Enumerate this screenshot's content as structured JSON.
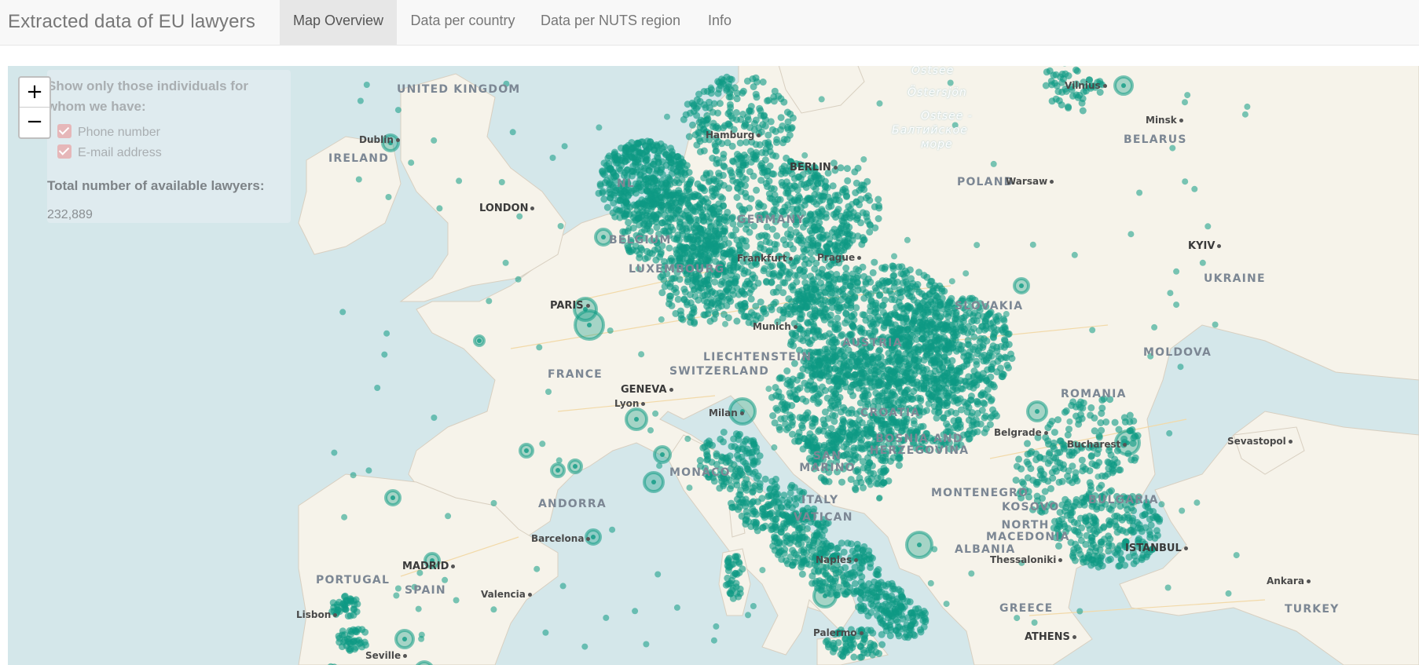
{
  "header": {
    "title": "Extracted data of EU lawyers",
    "tabs": [
      {
        "label": "Map Overview",
        "active": true
      },
      {
        "label": "Data per country",
        "active": false
      },
      {
        "label": "Data per NUTS region",
        "active": false
      },
      {
        "label": "Info",
        "active": false
      }
    ]
  },
  "map": {
    "zoom_in": "+",
    "zoom_out": "−",
    "marker_color": "#0e9a83",
    "filter": {
      "title": "Show only those individuals for whom we have:",
      "options": [
        {
          "label": "Phone number",
          "checked": true
        },
        {
          "label": "E-mail address",
          "checked": true
        }
      ],
      "total_label": "Total number of available lawyers:",
      "total_value": "232,889"
    },
    "labels": {
      "countries": [
        "UNITED KINGDOM",
        "IRELAND",
        "BELGIUM",
        "LUXEMBOURG",
        "FRANCE",
        "SWITZERLAND",
        "LIECHTENSTEIN",
        "ANDORRA",
        "SPAIN",
        "PORTUGAL",
        "ITALY",
        "GERMANY",
        "AUSTRIA",
        "POLAND",
        "BELARUS",
        "UKRAINE",
        "MOLDOVA",
        "ROMANIA",
        "BULGARIA",
        "BOSNIA AND HERZEGOVINA",
        "MONTENEGRO",
        "KOSOVO",
        "NORTH MACEDONIA",
        "ALBANIA",
        "GREECE",
        "TURKEY",
        "CROATIA",
        "MONACO",
        "VATICAN",
        "SAN MARINO",
        "SLOVAKIA",
        "NL"
      ],
      "cities": [
        "Dublin",
        "LONDON",
        "PARIS",
        "GENEVA",
        "Lyon",
        "Milan",
        "Munich",
        "Prague",
        "Frankfurt",
        "Hamburg",
        "BERLIN",
        "Warsaw",
        "Vilnius",
        "Minsk",
        "KYIV",
        "Sevastopol",
        "Bucharest",
        "Belgrade",
        "ISTANBUL",
        "Ankara",
        "Thessaloniki",
        "ATHENS",
        "Naples",
        "Palermo",
        "Barcelona",
        "Valencia",
        "MADRID",
        "Lisbon",
        "Seville"
      ],
      "seas": [
        "Ostsee",
        "Östersjön",
        "Ostsee -",
        "Балтийское",
        "море"
      ]
    }
  }
}
